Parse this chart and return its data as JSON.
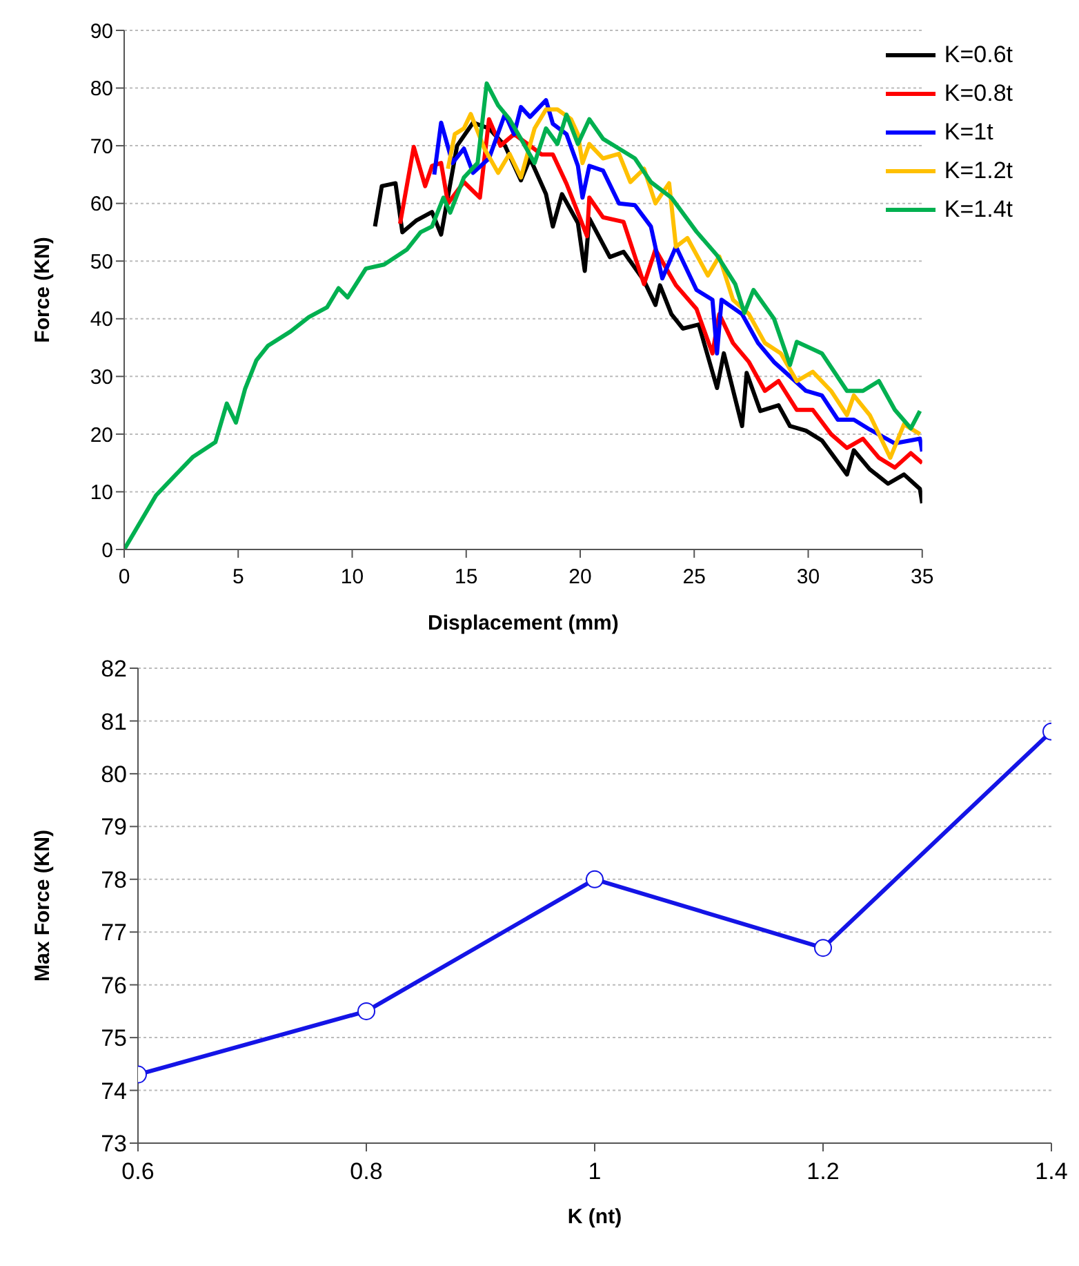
{
  "chart_data": [
    {
      "type": "line",
      "xlabel": "Displacement (mm)",
      "ylabel": "Force (KN)",
      "xlim": [
        0,
        35
      ],
      "xticks": [
        0,
        5,
        10,
        15,
        20,
        25,
        30,
        35
      ],
      "ylim": [
        0,
        90
      ],
      "yticks": [
        0,
        10,
        20,
        30,
        40,
        50,
        60,
        70,
        80,
        90
      ],
      "grid": "y",
      "legend": "top right",
      "series": [
        {
          "name": "K=0.6t",
          "color": "#000000",
          "x": [
            11.0,
            11.3,
            11.9,
            12.2,
            12.8,
            13.5,
            13.9,
            14.6,
            15.3,
            16,
            16.7,
            17.4,
            17.8,
            18.5,
            18.8,
            19.2,
            19.9,
            20.2,
            20.4,
            21.3,
            21.9,
            22.8,
            23.3,
            23.5,
            24,
            24.5,
            25.2,
            26,
            26.3,
            27.1,
            27.3,
            27.9,
            28.7,
            29.2,
            29.9,
            30.6,
            31.7,
            32,
            32.7,
            33.5,
            34.2,
            34.9,
            35
          ],
          "values": [
            56,
            63,
            63.5,
            55,
            57,
            58.5,
            54.6,
            70,
            74,
            73,
            70,
            64,
            67.8,
            61.6,
            56,
            61.6,
            56.6,
            48.3,
            57.4,
            50.7,
            51.6,
            46.6,
            42.4,
            45.8,
            40.8,
            38.3,
            39,
            28,
            34,
            21.4,
            30.6,
            24,
            25,
            21.4,
            20.6,
            18.9,
            13,
            17.2,
            13.9,
            11.4,
            13,
            10.5,
            8
          ]
        },
        {
          "name": "K=0.8t",
          "color": "#ff0000",
          "x": [
            12.1,
            12.7,
            13.2,
            13.5,
            13.9,
            14.2,
            14.9,
            15.6,
            16,
            16.5,
            17.1,
            17.8,
            18.3,
            18.8,
            19.4,
            19.9,
            20.3,
            20.4,
            21,
            21.9,
            22.8,
            23.3,
            24.2,
            25.1,
            25.8,
            26.1,
            26.7,
            27.4,
            28.1,
            28.7,
            29.5,
            30.2,
            31,
            31.7,
            32.4,
            33.1,
            33.8,
            34.5,
            35
          ],
          "values": [
            56.5,
            69.8,
            63,
            66.5,
            67,
            60,
            63.7,
            61,
            74.6,
            70,
            72,
            70,
            68.5,
            68.5,
            63.4,
            58.4,
            54.3,
            61,
            57.6,
            56.8,
            46,
            52,
            45.8,
            41.7,
            34,
            40.8,
            35.8,
            32.5,
            27.5,
            29.2,
            24.2,
            24.2,
            20,
            17.6,
            19.2,
            15.9,
            14.2,
            16.7,
            15
          ]
        },
        {
          "name": "K=1t",
          "color": "#0000ff",
          "x": [
            13.6,
            13.9,
            14.4,
            14.9,
            15.3,
            16,
            16.7,
            17.1,
            17.4,
            17.8,
            18.5,
            18.8,
            19.4,
            19.9,
            20.1,
            20.4,
            21,
            21.7,
            22.4,
            23.1,
            23.6,
            24.2,
            25.1,
            25.8,
            26,
            26.2,
            27.1,
            27.8,
            28.5,
            29.2,
            29.9,
            30.6,
            31.3,
            32,
            32.7,
            33.8,
            34.9,
            35
          ],
          "values": [
            65,
            74,
            67,
            69.5,
            65.3,
            67.8,
            75.5,
            72,
            76.7,
            75,
            77.9,
            73.8,
            72,
            66.5,
            61,
            66.5,
            65.7,
            60,
            59.7,
            56,
            47,
            52.5,
            45,
            43.3,
            34,
            43.3,
            40.8,
            35.8,
            32.5,
            30,
            27.5,
            26.7,
            22.5,
            22.5,
            20.8,
            18.4,
            19.2,
            17
          ]
        },
        {
          "name": "K=1.2t",
          "color": "#ffc000",
          "x": [
            14.2,
            14.5,
            14.9,
            15.2,
            15.8,
            16.4,
            16.9,
            17.4,
            18,
            18.5,
            19,
            19.6,
            19.9,
            20.1,
            20.4,
            21,
            21.7,
            22.2,
            22.8,
            23.3,
            23.9,
            24.2,
            24.7,
            25.6,
            26.1,
            26.7,
            27.4,
            28.1,
            28.8,
            29.5,
            30.2,
            31,
            31.7,
            32,
            32.7,
            33.6,
            34.2,
            34.9
          ],
          "values": [
            66,
            72,
            73,
            75.5,
            69.5,
            65.3,
            68.6,
            64.5,
            73,
            76.3,
            76.3,
            74.6,
            72,
            67,
            70.3,
            67.8,
            68.6,
            63.7,
            66,
            60,
            63.5,
            52.5,
            54,
            47.5,
            50.8,
            43.3,
            40.8,
            35.8,
            34,
            29.2,
            30.8,
            27.5,
            23.3,
            26.7,
            23.3,
            15.9,
            21.7,
            20
          ]
        },
        {
          "name": "K=1.4t",
          "color": "#00b050",
          "x": [
            0,
            1.4,
            3,
            4,
            4.5,
            4.9,
            5.3,
            5.8,
            6.3,
            7.3,
            8.1,
            8.9,
            9.4,
            9.8,
            10.6,
            11.4,
            12.4,
            13,
            13.5,
            14,
            14.3,
            14.9,
            15.5,
            15.9,
            16.4,
            16.9,
            17.4,
            18,
            18.5,
            19,
            19.4,
            19.9,
            20.4,
            21,
            21.7,
            22.4,
            23.1,
            24,
            25.1,
            26,
            26.8,
            27.2,
            27.6,
            28.5,
            29.2,
            29.5,
            30.6,
            31.7,
            32.4,
            33.1,
            33.8,
            34.5,
            34.9
          ],
          "values": [
            0,
            9.4,
            16,
            18.6,
            25.3,
            22,
            27.8,
            32.8,
            35.3,
            37.8,
            40.3,
            42,
            45.3,
            43.7,
            48.7,
            49.4,
            52,
            55,
            56,
            61,
            58.4,
            64.5,
            67,
            80.8,
            77,
            74.6,
            71.2,
            67,
            73,
            70.3,
            75.4,
            70.3,
            74.6,
            71.2,
            69.5,
            67.8,
            63.7,
            61,
            55.1,
            51,
            46,
            41,
            45,
            40,
            32,
            36,
            34,
            27.5,
            27.5,
            29.2,
            24.2,
            21,
            24
          ]
        }
      ]
    },
    {
      "type": "line",
      "xlabel": "K (nt)",
      "ylabel": "Max Force (KN)",
      "xlim": [
        0.6,
        1.4
      ],
      "xticks": [
        0.6,
        0.8,
        1,
        1.2,
        1.4
      ],
      "ylim": [
        73,
        82
      ],
      "yticks": [
        73,
        74,
        75,
        76,
        77,
        78,
        79,
        80,
        81,
        82
      ],
      "grid": "y",
      "marker": "circle",
      "x": [
        0.6,
        0.8,
        1,
        1.2,
        1.4
      ],
      "series": [
        {
          "color": "#1414e6",
          "values": [
            74.3,
            75.5,
            78.0,
            76.7,
            80.8
          ]
        }
      ]
    }
  ]
}
